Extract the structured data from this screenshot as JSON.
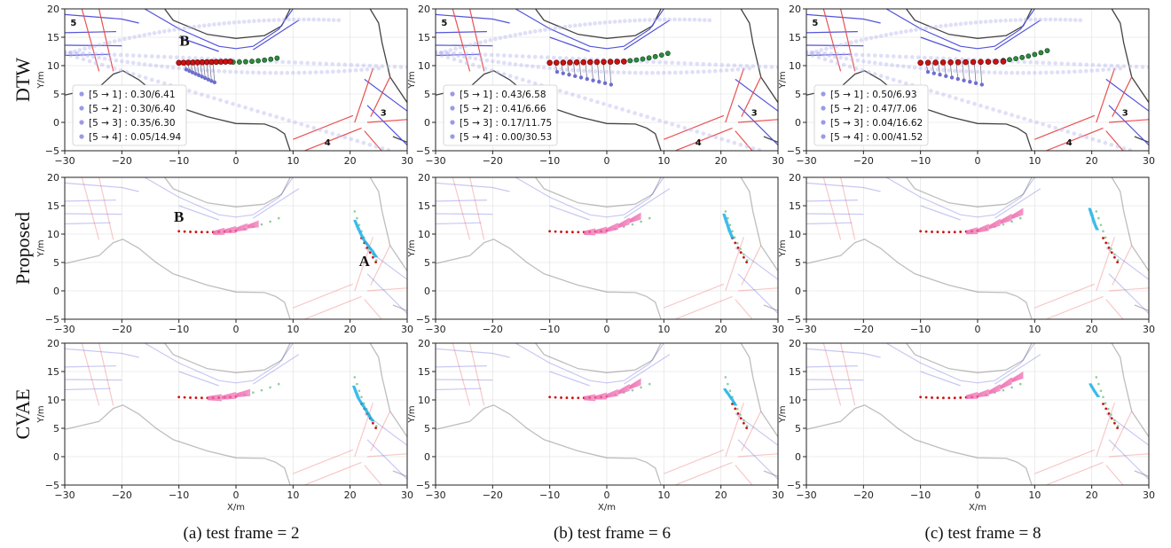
{
  "chart_data": {
    "type": "scatter",
    "xlabel": "X/m",
    "ylabel": "Y/m",
    "xlim": [
      -30,
      30
    ],
    "ylim": [
      -5,
      20
    ],
    "xticks": [
      -30,
      -20,
      -10,
      0,
      10,
      20,
      30
    ],
    "yticks": [
      -5,
      0,
      5,
      10,
      15,
      20
    ],
    "grid": true,
    "rows": [
      "DTW",
      "Proposed",
      "CVAE"
    ],
    "columns": [
      {
        "caption": "(a) test frame = 2",
        "frame": 2,
        "dtw_legend": [
          "[5 → 1] : 0.30/6.41",
          "[5 → 2] : 0.30/6.40",
          "[5 → 3] : 0.35/6.30",
          "[5 → 4] : 0.05/14.94"
        ],
        "proposed_vehicle_a": {
          "x": [
            20.8,
            21.6,
            22.4,
            23.2,
            24.0,
            24.6
          ],
          "y": [
            12.5,
            10.6,
            9.0,
            7.9,
            6.9,
            5.9
          ]
        },
        "proposed_vehicle_b": {
          "x": [
            -10,
            -8,
            -6,
            -4,
            -2,
            0,
            2,
            4
          ],
          "y": [
            10.4,
            10.3,
            10.2,
            10.2,
            10.5,
            10.8,
            11.3,
            11.8
          ]
        },
        "cvae_vehicle_a": {
          "x": [
            20.6,
            21.5,
            22.4,
            23.2,
            24.0
          ],
          "y": [
            12.5,
            10.2,
            8.8,
            7.5,
            6.2
          ]
        },
        "cvae_vehicle_b": {
          "x": [
            -10,
            -7.5,
            -5,
            -2.5,
            0,
            2.5
          ],
          "y": [
            10.5,
            10.4,
            10.3,
            10.4,
            10.8,
            11.3
          ]
        }
      },
      {
        "caption": "(b) test frame = 6",
        "frame": 6,
        "dtw_legend": [
          "[5 → 1] : 0.43/6.58",
          "[5 → 2] : 0.41/6.66",
          "[5 → 3] : 0.17/11.75",
          "[5 → 4] : 0.00/30.53"
        ],
        "proposed_vehicle_a": {
          "x": [
            20.5,
            21.1,
            21.6,
            22.1
          ],
          "y": [
            13.6,
            11.8,
            10.3,
            9.2
          ]
        },
        "proposed_vehicle_b": {
          "x": [
            -10,
            -8,
            -6,
            -4,
            -2,
            0,
            2,
            4,
            6
          ],
          "y": [
            10.4,
            10.3,
            10.2,
            10.2,
            10.4,
            10.7,
            11.4,
            12.3,
            13.2
          ]
        },
        "cvae_vehicle_a": {
          "x": [
            20.6,
            21.3,
            22.0,
            22.6
          ],
          "y": [
            12.0,
            11.0,
            10.0,
            9.0
          ]
        },
        "cvae_vehicle_b": {
          "x": [
            -10,
            -8,
            -6,
            -4,
            -2,
            0,
            2,
            4,
            6
          ],
          "y": [
            10.5,
            10.4,
            10.3,
            10.3,
            10.4,
            10.7,
            11.3,
            12.2,
            13.2
          ]
        }
      },
      {
        "caption": "(c) test frame = 8",
        "frame": 8,
        "dtw_legend": [
          "[5 → 1] : 0.50/6.93",
          "[5 → 2] : 0.47/7.06",
          "[5 → 3] : 0.04/16.62",
          "[5 → 4] : 0.00/41.52"
        ],
        "proposed_vehicle_a": {
          "x": [
            19.6,
            20.1,
            20.5,
            21.0
          ],
          "y": [
            14.6,
            13.1,
            11.8,
            10.7
          ]
        },
        "proposed_vehicle_b": {
          "x": [
            -10,
            -8,
            -6,
            -4,
            -2,
            0,
            2,
            4,
            6,
            8
          ],
          "y": [
            10.4,
            10.3,
            10.2,
            10.2,
            10.3,
            10.6,
            11.2,
            12.1,
            13.0,
            14.0
          ]
        },
        "cvae_vehicle_a": {
          "x": [
            19.7,
            20.2,
            20.7,
            21.2
          ],
          "y": [
            12.9,
            12.0,
            11.2,
            10.5
          ]
        },
        "cvae_vehicle_b": {
          "x": [
            -10,
            -8,
            -6,
            -4,
            -2,
            0,
            2,
            4,
            6,
            8
          ],
          "y": [
            10.5,
            10.4,
            10.3,
            10.3,
            10.5,
            10.8,
            11.3,
            12.2,
            13.4,
            14.4
          ]
        }
      }
    ],
    "history_b": {
      "x": [
        -10,
        -9,
        -8,
        -7,
        -6,
        -5,
        -4,
        -3,
        -2,
        -1,
        0
      ],
      "y": [
        10.5,
        10.45,
        10.4,
        10.38,
        10.36,
        10.35,
        10.36,
        10.4,
        10.45,
        10.5,
        10.6
      ]
    },
    "future_b_ground_truth": {
      "x": [
        0,
        1.5,
        3,
        4.5,
        6,
        7.5
      ],
      "y": [
        10.6,
        10.9,
        11.3,
        11.7,
        12.2,
        12.8
      ]
    },
    "history_a": {
      "x": [
        20.8,
        21.2,
        21.6,
        22.0
      ],
      "y": [
        14.0,
        12.8,
        11.6,
        10.5
      ]
    },
    "future_a_ground_truth": {
      "x": [
        22.4,
        22.9,
        23.4,
        24.0,
        24.6
      ],
      "y": [
        9.4,
        8.4,
        7.4,
        6.4,
        5.4
      ]
    },
    "zones": [
      "5",
      "3",
      "4"
    ],
    "vehicle_labels": [
      "A",
      "B"
    ],
    "colors": {
      "history": "#cc1111",
      "future": "#2e8b3e",
      "proposed_b": "#f06aaf",
      "proposed_a": "#1ab0e8",
      "lane_blue": "#4a4ad8",
      "lane_red": "#e84848",
      "curb": "#444444",
      "legend_marker": "#9a9ae6"
    }
  }
}
